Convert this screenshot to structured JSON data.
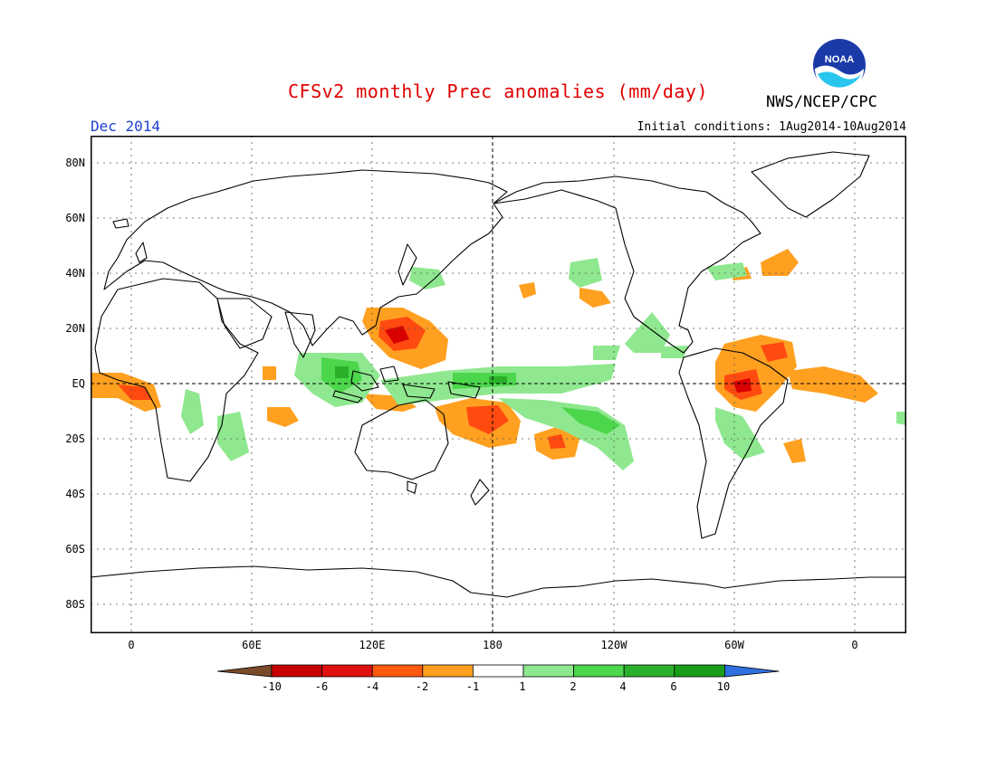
{
  "header": {
    "title": "CFSv2 monthly Prec anomalies (mm/day)",
    "organization": "NWS/NCEP/CPC",
    "month": "Dec 2014",
    "initial_conditions": "Initial conditions: 1Aug2014-10Aug2014",
    "logo_text": "NOAA"
  },
  "map": {
    "projection": "cylindrical-equidistant",
    "lat_labels": [
      "80N",
      "60N",
      "40N",
      "20N",
      "EQ",
      "20S",
      "40S",
      "60S",
      "80S"
    ],
    "lon_labels": [
      "0",
      "60E",
      "120E",
      "180",
      "120W",
      "60W",
      "0"
    ],
    "grid": true,
    "reference_lines": [
      "equator",
      "dateline"
    ]
  },
  "colorbar": {
    "labels": [
      "-10",
      "-6",
      "-4",
      "-2",
      "-1",
      "1",
      "2",
      "4",
      "6",
      "10"
    ],
    "colors": [
      "#7a4a2a",
      "#c80000",
      "#e01010",
      "#ff5a10",
      "#ffa020",
      "#ffffff",
      "#8fe88f",
      "#4cd64c",
      "#2bb02b",
      "#1a9e1a",
      "#2f6fe0"
    ]
  }
}
